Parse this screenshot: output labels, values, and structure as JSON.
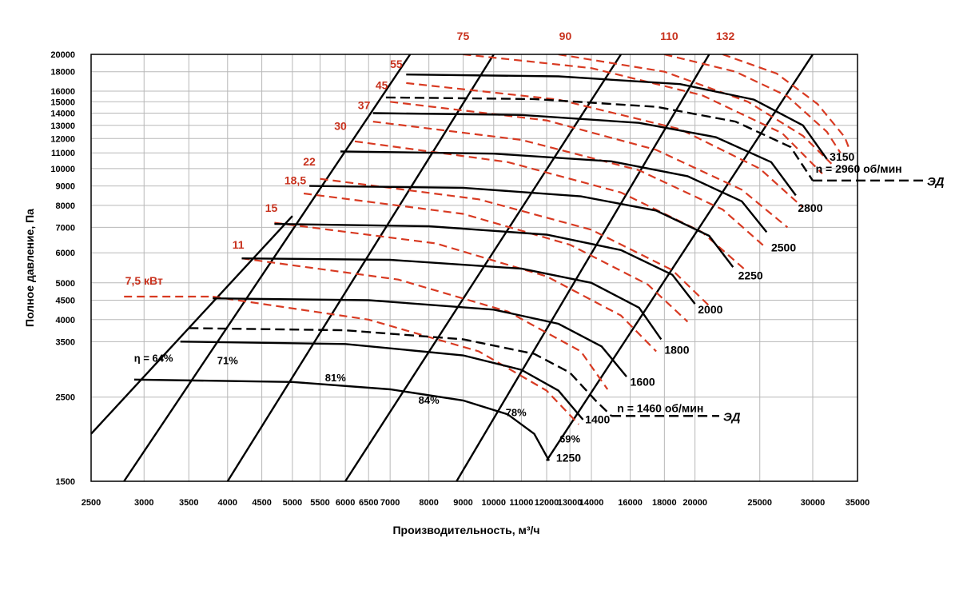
{
  "chart_data": {
    "type": "line",
    "xlabel": "Производительность, м³/ч",
    "ylabel": "Полное давление, Па",
    "x_scale": "log",
    "y_scale": "log",
    "xlim": [
      2500,
      35000
    ],
    "ylim": [
      1500,
      20000
    ],
    "grid": true,
    "x_ticks": [
      2500,
      3000,
      3500,
      4000,
      4500,
      5000,
      5500,
      6000,
      6500,
      7000,
      8000,
      9000,
      10000,
      11000,
      12000,
      13000,
      14000,
      16000,
      18000,
      20000,
      25000,
      30000,
      35000
    ],
    "x_tick_labels": [
      "2500",
      "3000",
      "3500",
      "4000",
      "4500",
      "5000",
      "5500",
      "6000",
      "6500",
      "7000",
      "8000",
      "9000",
      "10000",
      "11000",
      "12000",
      "13000",
      "14000",
      "16000",
      "18000",
      "20000",
      "25000",
      "30000",
      "35000"
    ],
    "y_ticks": [
      1500,
      2500,
      3500,
      4000,
      4500,
      5000,
      6000,
      7000,
      8000,
      9000,
      10000,
      11000,
      12000,
      13000,
      14000,
      15000,
      16000,
      18000,
      20000
    ],
    "y_tick_labels": [
      "1500",
      "2500",
      "3500",
      "4000",
      "4500",
      "5000",
      "6000",
      "7000",
      "8000",
      "9000",
      "10000",
      "11000",
      "12000",
      "13000",
      "14000",
      "15000",
      "16000",
      "18000",
      "20000"
    ],
    "efficiency_lines": [
      {
        "label": "η = 64%",
        "points": [
          [
            2500,
            2000
          ],
          [
            5000,
            7500
          ]
        ],
        "label_at": [
          3100,
          3100
        ]
      },
      {
        "label": "71%",
        "points": [
          [
            2800,
            1500
          ],
          [
            7500,
            20000
          ]
        ],
        "label_at": [
          4000,
          3050
        ]
      },
      {
        "label": "81%",
        "points": [
          [
            4000,
            1500
          ],
          [
            10000,
            20000
          ]
        ],
        "label_at": [
          5800,
          2750
        ]
      },
      {
        "label": "84%",
        "points": [
          [
            6000,
            1500
          ],
          [
            15500,
            20000
          ]
        ],
        "label_at": [
          8000,
          2400
        ]
      },
      {
        "label": "78%",
        "points": [
          [
            8800,
            1500
          ],
          [
            21000,
            20000
          ]
        ],
        "label_at": [
          10800,
          2230
        ]
      },
      {
        "label": "69%",
        "points": [
          [
            12000,
            1700
          ],
          [
            30000,
            20000
          ]
        ],
        "label_at": [
          13000,
          1900
        ]
      }
    ],
    "speed_curves": [
      {
        "label": "1250",
        "dashed": false,
        "points": [
          [
            2900,
            2780
          ],
          [
            5000,
            2740
          ],
          [
            7000,
            2620
          ],
          [
            9000,
            2450
          ],
          [
            10500,
            2250
          ],
          [
            11500,
            2000
          ],
          [
            12100,
            1700
          ]
        ],
        "label_at": [
          12400,
          1690
        ]
      },
      {
        "label": "1400",
        "dashed": false,
        "points": [
          [
            3400,
            3500
          ],
          [
            6000,
            3450
          ],
          [
            9000,
            3220
          ],
          [
            11000,
            2950
          ],
          [
            12500,
            2600
          ],
          [
            13600,
            2180
          ]
        ],
        "label_at": [
          13700,
          2130
        ]
      },
      {
        "label": "n = 1460 об/мин",
        "dashed": true,
        "points": [
          [
            3500,
            3800
          ],
          [
            6000,
            3750
          ],
          [
            9000,
            3550
          ],
          [
            11500,
            3250
          ],
          [
            13000,
            2900
          ],
          [
            14200,
            2450
          ],
          [
            15000,
            2230
          ]
        ],
        "label_at": [
          15300,
          2280
        ]
      },
      {
        "label": "1600",
        "dashed": false,
        "points": [
          [
            3800,
            4550
          ],
          [
            6500,
            4500
          ],
          [
            10000,
            4250
          ],
          [
            12500,
            3900
          ],
          [
            14500,
            3400
          ],
          [
            15800,
            2830
          ]
        ],
        "label_at": [
          16000,
          2680
        ]
      },
      {
        "label": "1800",
        "dashed": false,
        "points": [
          [
            4200,
            5800
          ],
          [
            7000,
            5750
          ],
          [
            11000,
            5450
          ],
          [
            14000,
            5000
          ],
          [
            16500,
            4300
          ],
          [
            17800,
            3550
          ]
        ],
        "label_at": [
          18000,
          3250
        ]
      },
      {
        "label": "2000",
        "dashed": false,
        "points": [
          [
            4700,
            7150
          ],
          [
            8000,
            7050
          ],
          [
            12000,
            6700
          ],
          [
            15500,
            6100
          ],
          [
            18500,
            5250
          ],
          [
            20000,
            4400
          ]
        ],
        "label_at": [
          20200,
          4150
        ]
      },
      {
        "label": "2250",
        "dashed": false,
        "points": [
          [
            5300,
            9000
          ],
          [
            9000,
            8900
          ],
          [
            13500,
            8450
          ],
          [
            17500,
            7750
          ],
          [
            21000,
            6650
          ],
          [
            22800,
            5500
          ]
        ],
        "label_at": [
          23200,
          5100
        ]
      },
      {
        "label": "2500",
        "dashed": false,
        "points": [
          [
            5900,
            11100
          ],
          [
            10000,
            10950
          ],
          [
            15000,
            10450
          ],
          [
            19500,
            9550
          ],
          [
            23500,
            8200
          ],
          [
            25600,
            6800
          ]
        ],
        "label_at": [
          26000,
          6050
        ]
      },
      {
        "label": "2800",
        "dashed": false,
        "points": [
          [
            6600,
            14000
          ],
          [
            11000,
            13850
          ],
          [
            16500,
            13200
          ],
          [
            21500,
            12100
          ],
          [
            26000,
            10400
          ],
          [
            28300,
            8500
          ]
        ],
        "label_at": [
          28500,
          7700
        ]
      },
      {
        "label": "n = 2960 об/мин",
        "dashed": true,
        "points": [
          [
            6900,
            15400
          ],
          [
            11500,
            15250
          ],
          [
            17500,
            14550
          ],
          [
            23000,
            13300
          ],
          [
            27800,
            11400
          ],
          [
            30000,
            9300
          ]
        ],
        "label_at": [
          30300,
          9750
        ]
      },
      {
        "label": "3150",
        "dashed": false,
        "points": [
          [
            7400,
            17700
          ],
          [
            12500,
            17500
          ],
          [
            19000,
            16700
          ],
          [
            24500,
            15200
          ],
          [
            29000,
            13000
          ],
          [
            31500,
            10600
          ]
        ],
        "label_at": [
          31800,
          10500
        ]
      }
    ],
    "power_curves": [
      {
        "label": "7,5 кВт",
        "points": [
          [
            2800,
            4600
          ],
          [
            3800,
            4600
          ]
        ],
        "label_at": [
          3000,
          4950
        ]
      },
      {
        "label": "",
        "points": [
          [
            3800,
            4600
          ],
          [
            6500,
            4000
          ],
          [
            9500,
            3300
          ],
          [
            12000,
            2600
          ],
          [
            13400,
            2120
          ]
        ]
      },
      {
        "label": "11",
        "points": [
          [
            4200,
            5800
          ],
          [
            7200,
            5100
          ],
          [
            10500,
            4200
          ],
          [
            13500,
            3300
          ],
          [
            14800,
            2620
          ]
        ],
        "label_at": [
          4150,
          6150
        ]
      },
      {
        "label": "15",
        "points": [
          [
            4700,
            7200
          ],
          [
            8200,
            6350
          ],
          [
            12000,
            5200
          ],
          [
            15500,
            4100
          ],
          [
            17500,
            3300
          ]
        ],
        "label_at": [
          4650,
          7700
        ]
      },
      {
        "label": "18,5",
        "points": [
          [
            5200,
            8600
          ],
          [
            9000,
            7600
          ],
          [
            13000,
            6300
          ],
          [
            17000,
            4950
          ],
          [
            19500,
            3950
          ]
        ],
        "label_at": [
          5050,
          9100
        ]
      },
      {
        "label": "22",
        "points": [
          [
            5500,
            9400
          ],
          [
            9500,
            8300
          ],
          [
            14000,
            6900
          ],
          [
            18500,
            5400
          ],
          [
            21000,
            4350
          ]
        ],
        "label_at": [
          5300,
          10200
        ]
      },
      {
        "label": "30",
        "points": [
          [
            6200,
            11800
          ],
          [
            10500,
            10400
          ],
          [
            15500,
            8650
          ],
          [
            20500,
            6800
          ],
          [
            23800,
            5400
          ]
        ],
        "label_at": [
          5900,
          12650
        ]
      },
      {
        "label": "37",
        "points": [
          [
            6600,
            13300
          ],
          [
            11000,
            11900
          ],
          [
            16500,
            9900
          ],
          [
            22000,
            7800
          ],
          [
            25500,
            6200
          ]
        ],
        "label_at": [
          6400,
          14350
        ]
      },
      {
        "label": "45",
        "points": [
          [
            7000,
            15000
          ],
          [
            12000,
            13400
          ],
          [
            17500,
            11200
          ],
          [
            23500,
            8800
          ],
          [
            27500,
            7000
          ]
        ],
        "label_at": [
          6800,
          16200
        ]
      },
      {
        "label": "55",
        "points": [
          [
            7400,
            16800
          ],
          [
            12500,
            15200
          ],
          [
            19000,
            12700
          ],
          [
            25000,
            10000
          ],
          [
            29000,
            7900
          ]
        ],
        "label_at": [
          7150,
          18400
        ]
      },
      {
        "label": "75",
        "points": [
          [
            9000,
            20000
          ],
          [
            14000,
            18400
          ],
          [
            20500,
            15600
          ],
          [
            27000,
            12400
          ],
          [
            31000,
            9700
          ]
        ],
        "label_at": [
          9000,
          21800
        ]
      },
      {
        "label": "90",
        "points": [
          [
            12500,
            20000
          ],
          [
            18000,
            18000
          ],
          [
            24000,
            15000
          ],
          [
            29000,
            12200
          ],
          [
            32000,
            10300
          ]
        ],
        "label_at": [
          12800,
          21800
        ]
      },
      {
        "label": "110",
        "points": [
          [
            18000,
            20000
          ],
          [
            23000,
            18000
          ],
          [
            27500,
            15500
          ],
          [
            31500,
            12500
          ],
          [
            33000,
            11000
          ]
        ],
        "label_at": [
          18300,
          21800
        ]
      },
      {
        "label": "132",
        "points": [
          [
            22000,
            20000
          ],
          [
            26500,
            17800
          ],
          [
            30500,
            14800
          ],
          [
            33500,
            12100
          ],
          [
            34000,
            11300
          ]
        ],
        "label_at": [
          22200,
          21800
        ]
      }
    ],
    "motor_marker_label": "ЭД"
  }
}
